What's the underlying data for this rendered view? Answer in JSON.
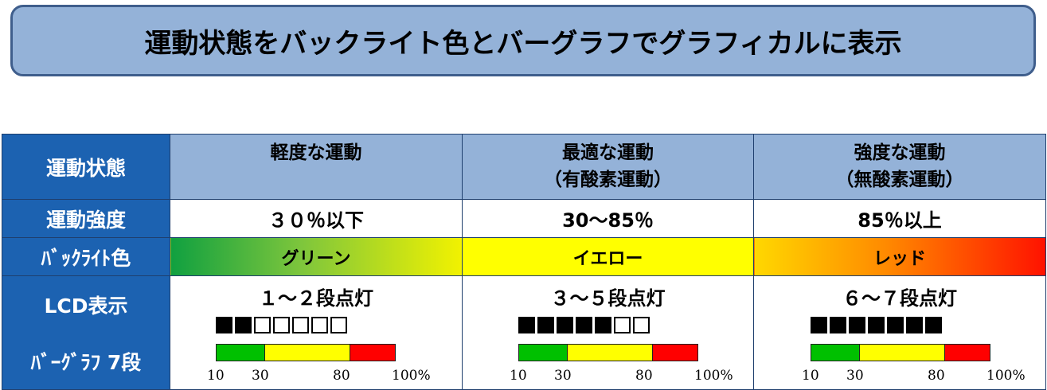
{
  "title": "運動状態をバックライト色とバーグラフでグラフィカルに表示",
  "rows": {
    "state_label": "運動状態",
    "intensity_label": "運動強度",
    "backlight_label": "ﾊﾞｯｸﾗｲﾄ色",
    "lcd_label": "LCD表示",
    "bargraph_label": "ﾊﾞｰｸﾞﾗﾌ 7段"
  },
  "columns": [
    {
      "state": "軽度な運動",
      "state_sub": "",
      "intensity": "３０％以下",
      "backlight": "グリーン",
      "backlight_color": "#10a040",
      "lcd": "１～２段点灯",
      "segments_lit": 2
    },
    {
      "state": "最適な運動",
      "state_sub": "（有酸素運動）",
      "intensity": "30～85％",
      "backlight": "イエロー",
      "backlight_color": "#ffff00",
      "lcd": "３～５段点灯",
      "segments_lit": 5
    },
    {
      "state": "強度な運動",
      "state_sub": "（無酸素運動）",
      "intensity": "85％以上",
      "backlight": "レッド",
      "backlight_color": "#ff1200",
      "lcd": "６～７段点灯",
      "segments_lit": 7
    }
  ],
  "segments_total": 7,
  "scale": {
    "t10": "10",
    "t30": "30",
    "t80": "80",
    "t100": "100%"
  },
  "zone_colors": {
    "green": "#00c000",
    "yellow": "#ffff00",
    "red": "#ff0000"
  }
}
